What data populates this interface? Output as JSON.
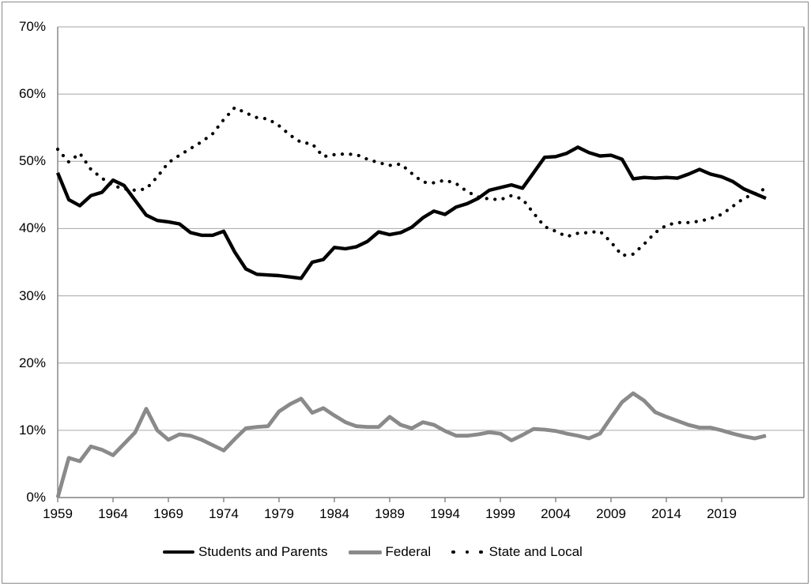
{
  "figure": {
    "background_color": "#FFFFFF",
    "outer_border_color": "#8A8A8A",
    "gridline_color": "#A6A6A6",
    "axis_color": "#808080",
    "text_color": "#000000"
  },
  "chart_data": {
    "type": "line",
    "title": "",
    "xlabel": "",
    "ylabel": "",
    "x_start_year": 1959,
    "x_end_year": 2023,
    "x": [
      1959,
      1960,
      1961,
      1962,
      1963,
      1964,
      1965,
      1966,
      1967,
      1968,
      1969,
      1970,
      1971,
      1972,
      1973,
      1974,
      1975,
      1976,
      1977,
      1978,
      1979,
      1980,
      1981,
      1982,
      1983,
      1984,
      1985,
      1986,
      1987,
      1988,
      1989,
      1990,
      1991,
      1992,
      1993,
      1994,
      1995,
      1996,
      1997,
      1998,
      1999,
      2000,
      2001,
      2002,
      2003,
      2004,
      2005,
      2006,
      2007,
      2008,
      2009,
      2010,
      2011,
      2012,
      2013,
      2014,
      2015,
      2016,
      2017,
      2018,
      2019,
      2020,
      2021,
      2022,
      2023
    ],
    "x_tick_years": [
      1959,
      1964,
      1969,
      1974,
      1979,
      1984,
      1989,
      1994,
      1999,
      2004,
      2009,
      2014,
      2019
    ],
    "x_tick_labels": [
      "1959",
      "1964",
      "1969",
      "1974",
      "1979",
      "1984",
      "1989",
      "1994",
      "1999",
      "2004",
      "2009",
      "2014",
      "2019"
    ],
    "y_tick_labels": [
      "0%",
      "10%",
      "20%",
      "30%",
      "40%",
      "50%",
      "60%",
      "70%"
    ],
    "ylim": [
      0,
      70
    ],
    "grid": "horizontal",
    "legend_position": "bottom",
    "series": [
      {
        "name": "Students and Parents",
        "style": "solid",
        "color": "#000000",
        "values": [
          48.3,
          44.3,
          43.4,
          44.9,
          45.4,
          47.2,
          46.4,
          44.2,
          42.0,
          41.2,
          41.0,
          40.7,
          39.4,
          39.0,
          39.0,
          39.6,
          36.5,
          34.0,
          33.2,
          33.1,
          33.0,
          32.8,
          32.6,
          35.0,
          35.4,
          37.2,
          37.0,
          37.3,
          38.1,
          39.5,
          39.1,
          39.4,
          40.2,
          41.6,
          42.6,
          42.1,
          43.2,
          43.7,
          44.5,
          45.7,
          46.1,
          46.5,
          46.0,
          48.3,
          50.6,
          50.7,
          51.2,
          52.1,
          51.3,
          50.8,
          50.9,
          50.3,
          47.4,
          47.6,
          47.5,
          47.6,
          47.5,
          48.1,
          48.8,
          48.1,
          47.7,
          47.0,
          45.9,
          45.2,
          44.5
        ]
      },
      {
        "name": "Federal",
        "style": "solid",
        "color": "#8A8A8A",
        "values": [
          0.0,
          5.9,
          5.4,
          7.6,
          7.1,
          6.3,
          8.0,
          9.7,
          13.2,
          10.0,
          8.6,
          9.4,
          9.2,
          8.6,
          7.8,
          7.0,
          8.7,
          10.3,
          10.5,
          10.6,
          12.8,
          13.9,
          14.7,
          12.6,
          13.3,
          12.2,
          11.2,
          10.6,
          10.5,
          10.5,
          12.0,
          10.8,
          10.3,
          11.2,
          10.8,
          9.9,
          9.2,
          9.2,
          9.4,
          9.7,
          9.5,
          8.5,
          9.3,
          10.2,
          10.1,
          9.9,
          9.5,
          9.2,
          8.8,
          9.5,
          11.9,
          14.2,
          15.5,
          14.4,
          12.7,
          12.0,
          11.4,
          10.8,
          10.4,
          10.4,
          10.0,
          9.5,
          9.1,
          8.8,
          9.2
        ]
      },
      {
        "name": "State and Local",
        "style": "dotted",
        "color": "#000000",
        "values": [
          51.8,
          49.9,
          51.2,
          48.8,
          47.5,
          46.4,
          45.9,
          45.7,
          45.9,
          47.7,
          49.8,
          50.9,
          51.9,
          52.9,
          54.1,
          56.2,
          58.0,
          57.2,
          56.5,
          56.3,
          55.3,
          53.9,
          52.8,
          52.6,
          50.7,
          51.0,
          51.1,
          51.0,
          50.3,
          49.8,
          49.4,
          49.6,
          48.2,
          46.9,
          46.8,
          47.2,
          46.7,
          45.5,
          44.7,
          44.4,
          44.3,
          44.9,
          44.4,
          42.3,
          40.3,
          39.6,
          38.8,
          39.3,
          39.4,
          39.6,
          38.0,
          36.0,
          36.2,
          37.7,
          39.4,
          40.5,
          40.9,
          40.9,
          41.1,
          41.5,
          42.1,
          43.3,
          44.5,
          45.2,
          46.0
        ]
      }
    ]
  }
}
